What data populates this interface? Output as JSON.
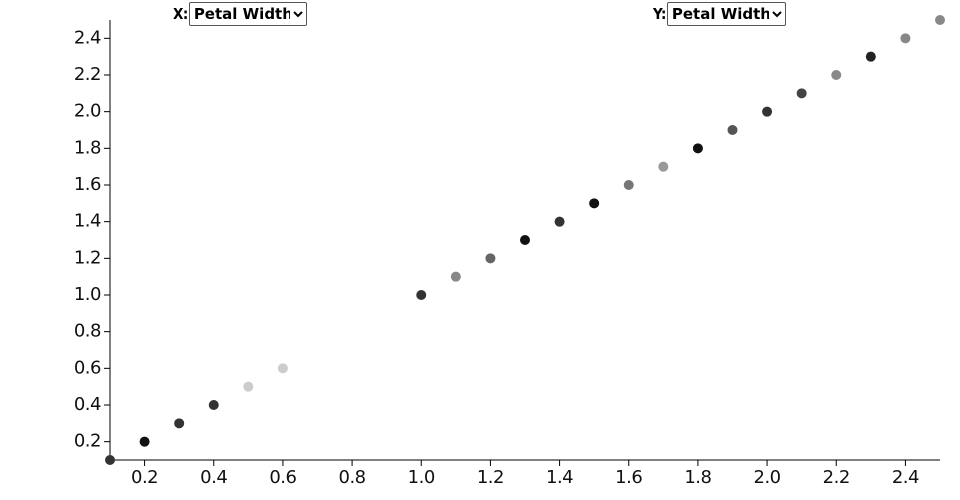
{
  "controls": {
    "x_label": "X:",
    "x_option": "Petal Width",
    "y_label": "Y:",
    "y_option": "Petal Width"
  },
  "chart_data": {
    "type": "scatter",
    "x": [
      0.1,
      0.2,
      0.3,
      0.4,
      0.5,
      0.6,
      1.0,
      1.1,
      1.2,
      1.3,
      1.4,
      1.5,
      1.6,
      1.7,
      1.8,
      1.9,
      2.0,
      2.1,
      2.2,
      2.3,
      2.4,
      2.5
    ],
    "values": [
      0.1,
      0.2,
      0.3,
      0.4,
      0.5,
      0.6,
      1.0,
      1.1,
      1.2,
      1.3,
      1.4,
      1.5,
      1.6,
      1.7,
      1.8,
      1.9,
      2.0,
      2.1,
      2.2,
      2.3,
      2.4,
      2.5
    ],
    "colors": [
      "#333333",
      "#111111",
      "#333333",
      "#333333",
      "#cccccc",
      "#cccccc",
      "#333333",
      "#888888",
      "#666666",
      "#111111",
      "#333333",
      "#111111",
      "#777777",
      "#999999",
      "#111111",
      "#555555",
      "#333333",
      "#444444",
      "#888888",
      "#222222",
      "#888888",
      "#888888"
    ],
    "xlim": [
      0.1,
      2.5
    ],
    "ylim": [
      0.1,
      2.5
    ],
    "xticks": [
      0.2,
      0.4,
      0.6,
      0.8,
      {
        "value": 1,
        "label": "1.0"
      },
      1.2,
      1.4,
      1.6,
      1.8,
      {
        "value": 2,
        "label": "2.0"
      },
      2.2,
      2.4
    ],
    "yticks": [
      0.2,
      0.4,
      0.6,
      0.8,
      {
        "value": 1,
        "label": "1.0"
      },
      1.2,
      1.4,
      1.6,
      1.8,
      {
        "value": 2,
        "label": "2.0"
      },
      2.2,
      2.4
    ],
    "grid": false
  }
}
